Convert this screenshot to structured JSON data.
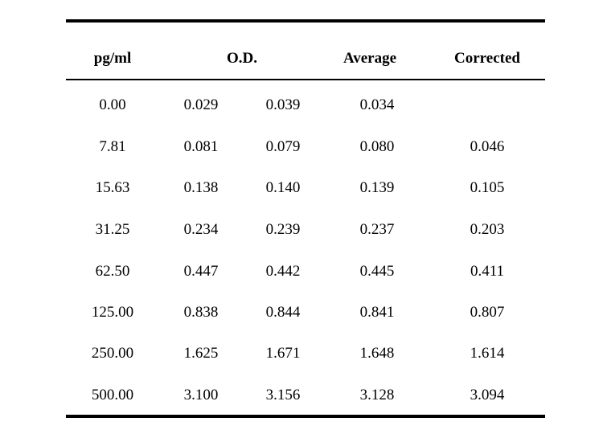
{
  "table": {
    "headers": {
      "conc": "pg/ml",
      "od": "O.D.",
      "average": "Average",
      "corrected": "Corrected"
    },
    "rows": [
      {
        "conc": "0.00",
        "od1": "0.029",
        "od2": "0.039",
        "avg": "0.034",
        "corr": ""
      },
      {
        "conc": "7.81",
        "od1": "0.081",
        "od2": "0.079",
        "avg": "0.080",
        "corr": "0.046"
      },
      {
        "conc": "15.63",
        "od1": "0.138",
        "od2": "0.140",
        "avg": "0.139",
        "corr": "0.105"
      },
      {
        "conc": "31.25",
        "od1": "0.234",
        "od2": "0.239",
        "avg": "0.237",
        "corr": "0.203"
      },
      {
        "conc": "62.50",
        "od1": "0.447",
        "od2": "0.442",
        "avg": "0.445",
        "corr": "0.411"
      },
      {
        "conc": "125.00",
        "od1": "0.838",
        "od2": "0.844",
        "avg": "0.841",
        "corr": "0.807"
      },
      {
        "conc": "250.00",
        "od1": "1.625",
        "od2": "1.671",
        "avg": "1.648",
        "corr": "1.614"
      },
      {
        "conc": "500.00",
        "od1": "3.100",
        "od2": "3.156",
        "avg": "3.128",
        "corr": "3.094"
      }
    ]
  }
}
